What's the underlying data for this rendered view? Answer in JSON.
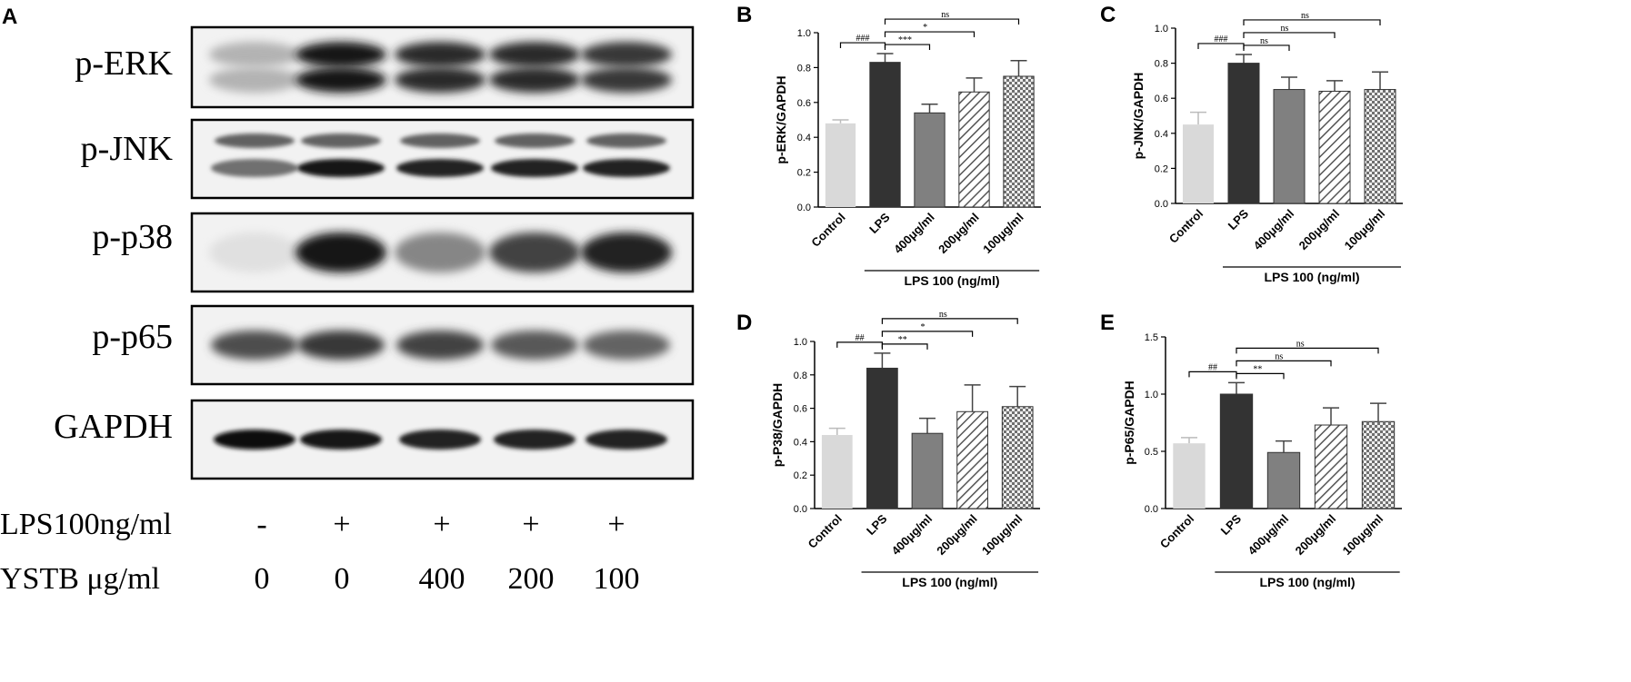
{
  "figure": {
    "panel_letters": [
      "A",
      "B",
      "C",
      "D",
      "E"
    ]
  },
  "blot": {
    "rows": [
      {
        "label": "p-ERK"
      },
      {
        "label": "p-JNK"
      },
      {
        "label": "p-p38"
      },
      {
        "label": "p-p65"
      },
      {
        "label": "GAPDH"
      }
    ],
    "band_intensity": {
      "p-ERK": [
        0.25,
        0.95,
        0.85,
        0.85,
        0.8
      ],
      "p-JNK": [
        0.55,
        0.95,
        0.9,
        0.9,
        0.9
      ],
      "p-p38": [
        0.05,
        0.95,
        0.45,
        0.75,
        0.9
      ],
      "p-p65": [
        0.7,
        0.8,
        0.75,
        0.65,
        0.6
      ],
      "GAPDH": [
        1.0,
        0.95,
        0.9,
        0.9,
        0.9
      ]
    },
    "condition_rows": [
      {
        "label": "LPS100ng/ml",
        "values": [
          "-",
          "+",
          "+",
          "+",
          "+"
        ]
      },
      {
        "label": "YSTB μg/ml",
        "values": [
          "0",
          "0",
          "400",
          "200",
          "100"
        ]
      }
    ]
  },
  "chart_data": [
    {
      "panel": "B",
      "type": "bar",
      "ylabel": "p-ERK/GAPDH",
      "ylim": [
        0,
        1.0
      ],
      "yticks": [
        "0.0",
        "0.2",
        "0.4",
        "0.6",
        "0.8",
        "1.0"
      ],
      "categories": [
        "Control",
        "LPS",
        "400μg/ml",
        "200μg/ml",
        "100μg/ml"
      ],
      "values": [
        0.48,
        0.83,
        0.54,
        0.66,
        0.75
      ],
      "errors": [
        0.02,
        0.05,
        0.05,
        0.08,
        0.09
      ],
      "group_label": "LPS 100 (ng/ml)",
      "annotations": [
        {
          "from": 0,
          "to": 1,
          "label": "###"
        },
        {
          "from": 1,
          "to": 2,
          "label": "***"
        },
        {
          "from": 1,
          "to": 3,
          "label": "*"
        },
        {
          "from": 1,
          "to": 4,
          "label": "ns"
        }
      ]
    },
    {
      "panel": "C",
      "type": "bar",
      "ylabel": "p-JNK/GAPDH",
      "ylim": [
        0,
        1.0
      ],
      "yticks": [
        "0.0",
        "0.2",
        "0.4",
        "0.6",
        "0.8",
        "1.0"
      ],
      "categories": [
        "Control",
        "LPS",
        "400μg/ml",
        "200μg/ml",
        "100μg/ml"
      ],
      "values": [
        0.45,
        0.8,
        0.65,
        0.64,
        0.65
      ],
      "errors": [
        0.07,
        0.05,
        0.07,
        0.06,
        0.1
      ],
      "group_label": "LPS 100 (ng/ml)",
      "annotations": [
        {
          "from": 0,
          "to": 1,
          "label": "###"
        },
        {
          "from": 1,
          "to": 2,
          "label": "ns"
        },
        {
          "from": 1,
          "to": 3,
          "label": "ns"
        },
        {
          "from": 1,
          "to": 4,
          "label": "ns"
        }
      ]
    },
    {
      "panel": "D",
      "type": "bar",
      "ylabel": "p-P38/GAPDH",
      "ylim": [
        0,
        1.0
      ],
      "yticks": [
        "0.0",
        "0.2",
        "0.4",
        "0.6",
        "0.8",
        "1.0"
      ],
      "categories": [
        "Control",
        "LPS",
        "400μg/ml",
        "200μg/ml",
        "100μg/ml"
      ],
      "values": [
        0.44,
        0.84,
        0.45,
        0.58,
        0.61
      ],
      "errors": [
        0.04,
        0.09,
        0.09,
        0.16,
        0.12
      ],
      "group_label": "LPS 100 (ng/ml)",
      "annotations": [
        {
          "from": 0,
          "to": 1,
          "label": "##"
        },
        {
          "from": 1,
          "to": 2,
          "label": "**"
        },
        {
          "from": 1,
          "to": 3,
          "label": "*"
        },
        {
          "from": 1,
          "to": 4,
          "label": "ns"
        }
      ]
    },
    {
      "panel": "E",
      "type": "bar",
      "ylabel": "p-P65/GAPDH",
      "ylim": [
        0,
        1.5
      ],
      "yticks": [
        "0.0",
        "0.5",
        "1.0",
        "1.5"
      ],
      "categories": [
        "Control",
        "LPS",
        "400μg/ml",
        "200μg/ml",
        "100μg/ml"
      ],
      "values": [
        0.57,
        1.0,
        0.49,
        0.73,
        0.76
      ],
      "errors": [
        0.05,
        0.1,
        0.1,
        0.15,
        0.16
      ],
      "group_label": "LPS 100 (ng/ml)",
      "annotations": [
        {
          "from": 0,
          "to": 1,
          "label": "##"
        },
        {
          "from": 1,
          "to": 2,
          "label": "**"
        },
        {
          "from": 1,
          "to": 3,
          "label": "ns"
        },
        {
          "from": 1,
          "to": 4,
          "label": "ns"
        }
      ]
    }
  ],
  "colors": {
    "control": "#d9d9d9",
    "lps": "#333333",
    "treat400": "#808080",
    "axis": "#000000"
  }
}
